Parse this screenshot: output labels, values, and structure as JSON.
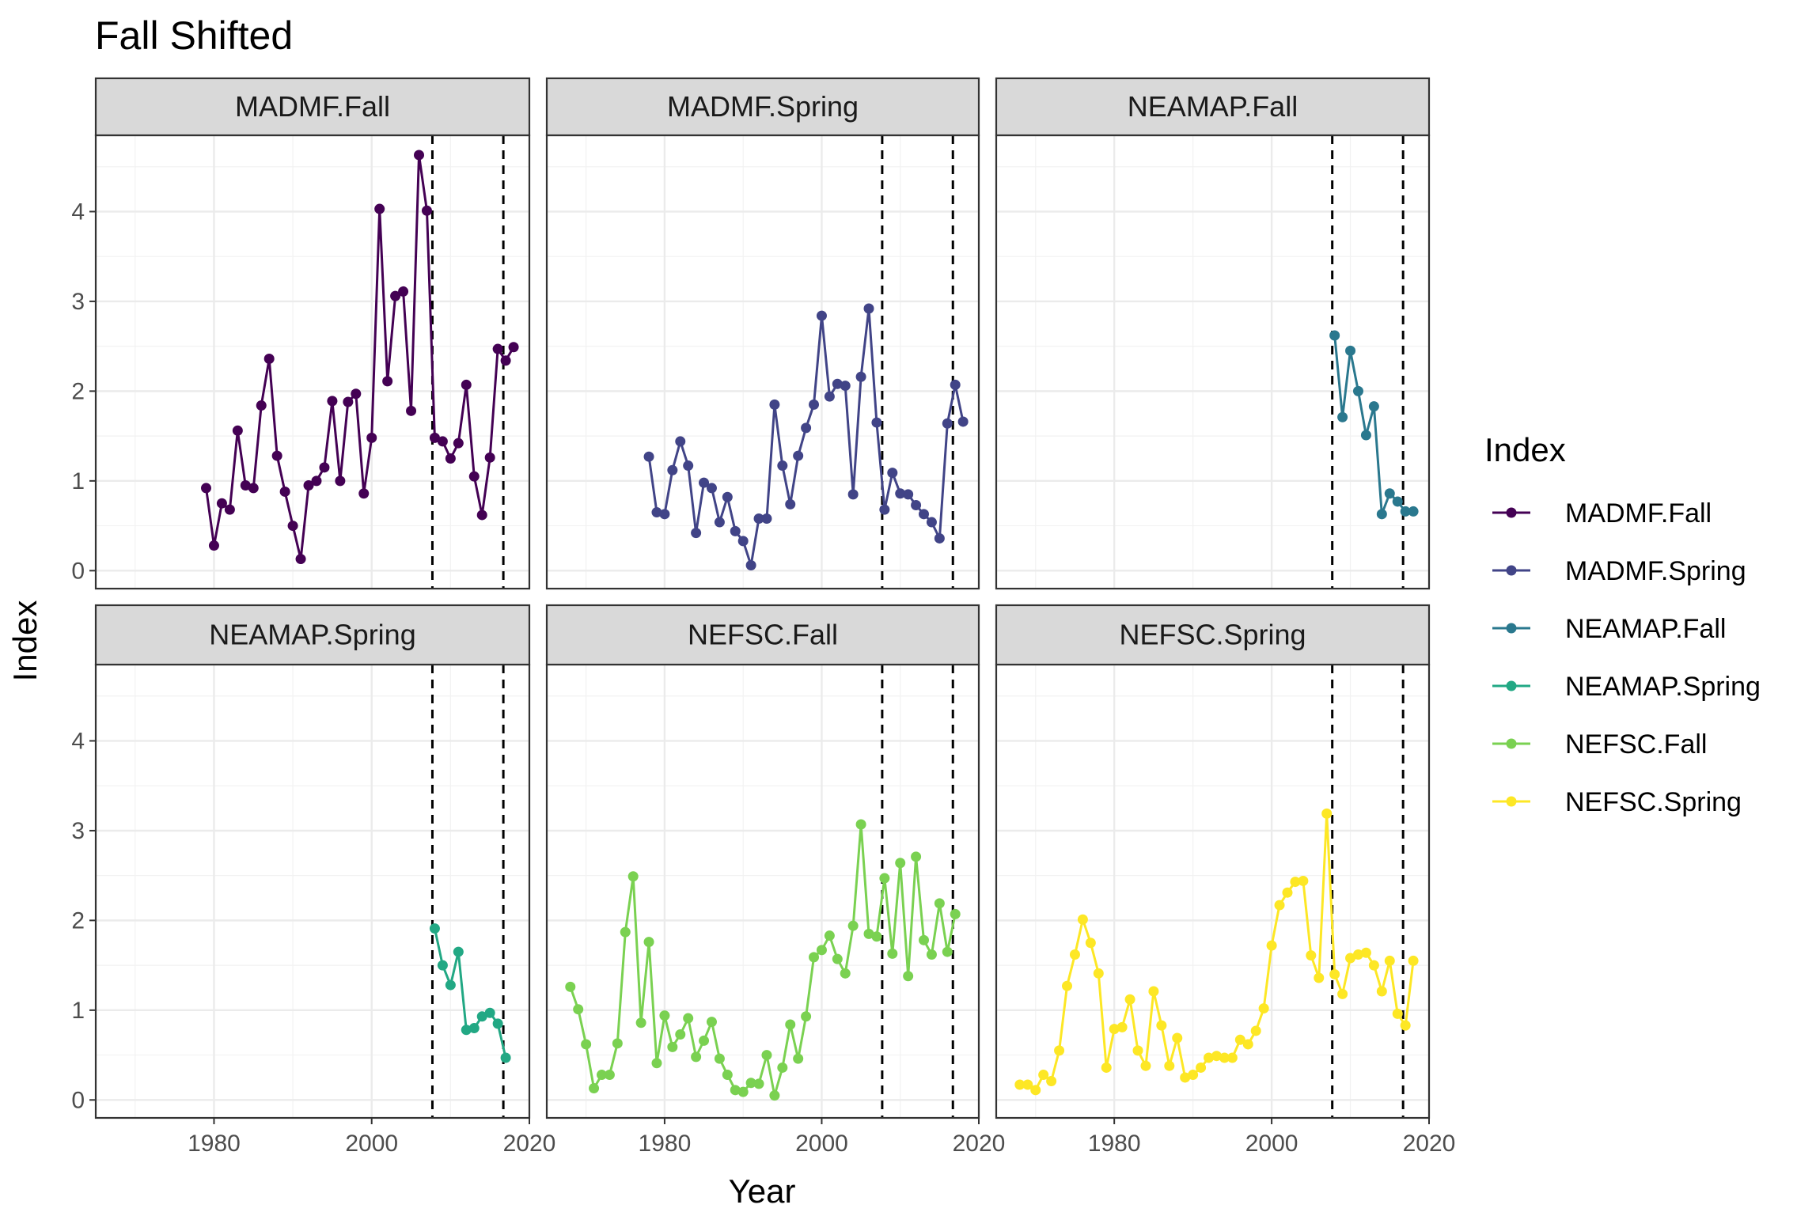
{
  "chart_data": {
    "type": "line",
    "title": "Fall Shifted",
    "xlabel": "Year",
    "ylabel": "Index",
    "xlim": [
      1965,
      2020
    ],
    "ylim": [
      -0.2,
      4.85
    ],
    "x_ticks": [
      1980,
      2000,
      2020
    ],
    "y_ticks": [
      0,
      1,
      2,
      3,
      4
    ],
    "grid": true,
    "legend_title": "Index",
    "legend_position": "right",
    "vlines": [
      2007.7,
      2016.7
    ],
    "panels": [
      {
        "name": "MADMF.Fall",
        "color": "#440154",
        "x": [
          1979,
          1980,
          1981,
          1982,
          1983,
          1984,
          1985,
          1986,
          1987,
          1988,
          1989,
          1990,
          1991,
          1992,
          1993,
          1994,
          1995,
          1996,
          1997,
          1998,
          1999,
          2000,
          2001,
          2002,
          2003,
          2004,
          2005,
          2006,
          2007,
          2008,
          2009,
          2010,
          2011,
          2012,
          2013,
          2014,
          2015,
          2016,
          2017,
          2018
        ],
        "y": [
          0.92,
          0.28,
          0.75,
          0.68,
          1.56,
          0.95,
          0.92,
          1.84,
          2.36,
          1.28,
          0.88,
          0.5,
          0.13,
          0.95,
          1.0,
          1.15,
          1.89,
          1.0,
          1.88,
          1.97,
          0.86,
          1.48,
          4.03,
          2.11,
          3.06,
          3.11,
          1.78,
          4.63,
          4.01,
          1.48,
          1.44,
          1.25,
          1.42,
          2.07,
          1.05,
          0.62,
          1.26,
          2.47,
          2.34,
          2.49
        ]
      },
      {
        "name": "MADMF.Spring",
        "color": "#414487",
        "x": [
          1978,
          1979,
          1980,
          1981,
          1982,
          1983,
          1984,
          1985,
          1986,
          1987,
          1988,
          1989,
          1990,
          1991,
          1992,
          1993,
          1994,
          1995,
          1996,
          1997,
          1998,
          1999,
          2000,
          2001,
          2002,
          2003,
          2004,
          2005,
          2006,
          2007,
          2008,
          2009,
          2010,
          2011,
          2012,
          2013,
          2014,
          2015,
          2016,
          2017,
          2018
        ],
        "y": [
          1.27,
          0.65,
          0.63,
          1.12,
          1.44,
          1.17,
          0.42,
          0.98,
          0.92,
          0.54,
          0.82,
          0.44,
          0.33,
          0.06,
          0.58,
          0.58,
          1.85,
          1.17,
          0.74,
          1.28,
          1.59,
          1.85,
          2.84,
          1.94,
          2.08,
          2.06,
          0.85,
          2.16,
          2.92,
          1.65,
          0.68,
          1.09,
          0.86,
          0.85,
          0.73,
          0.63,
          0.54,
          0.36,
          1.64,
          2.07,
          1.66
        ]
      },
      {
        "name": "NEAMAP.Fall",
        "color": "#2A788E",
        "x": [
          2008,
          2009,
          2010,
          2011,
          2012,
          2013,
          2014,
          2015,
          2016,
          2017,
          2018
        ],
        "y": [
          2.62,
          1.71,
          2.45,
          2.0,
          1.51,
          1.83,
          0.63,
          0.86,
          0.77,
          0.66,
          0.66
        ]
      },
      {
        "name": "NEAMAP.Spring",
        "color": "#22A884",
        "x": [
          2008,
          2009,
          2010,
          2011,
          2012,
          2013,
          2014,
          2015,
          2016,
          2017
        ],
        "y": [
          1.91,
          1.5,
          1.28,
          1.65,
          0.78,
          0.8,
          0.93,
          0.97,
          0.85,
          0.47
        ]
      },
      {
        "name": "NEFSC.Fall",
        "color": "#7AD151",
        "x": [
          1968,
          1969,
          1970,
          1971,
          1972,
          1973,
          1974,
          1975,
          1976,
          1977,
          1978,
          1979,
          1980,
          1981,
          1982,
          1983,
          1984,
          1985,
          1986,
          1987,
          1988,
          1989,
          1990,
          1991,
          1992,
          1993,
          1994,
          1995,
          1996,
          1997,
          1998,
          1999,
          2000,
          2001,
          2002,
          2003,
          2004,
          2005,
          2006,
          2007,
          2008,
          2009,
          2010,
          2011,
          2012,
          2013,
          2014,
          2015,
          2016,
          2017
        ],
        "y": [
          1.26,
          1.01,
          0.62,
          0.13,
          0.28,
          0.28,
          0.63,
          1.87,
          2.49,
          0.86,
          1.76,
          0.41,
          0.94,
          0.59,
          0.73,
          0.91,
          0.48,
          0.66,
          0.87,
          0.46,
          0.28,
          0.11,
          0.09,
          0.19,
          0.18,
          0.5,
          0.05,
          0.36,
          0.84,
          0.46,
          0.93,
          1.59,
          1.67,
          1.83,
          1.57,
          1.41,
          1.94,
          3.07,
          1.85,
          1.82,
          2.47,
          1.63,
          2.64,
          1.38,
          2.71,
          1.78,
          1.62,
          2.19,
          1.65,
          2.07
        ]
      },
      {
        "name": "NEFSC.Spring",
        "color": "#FDE725",
        "x": [
          1968,
          1969,
          1970,
          1971,
          1972,
          1973,
          1974,
          1975,
          1976,
          1977,
          1978,
          1979,
          1980,
          1981,
          1982,
          1983,
          1984,
          1985,
          1986,
          1987,
          1988,
          1989,
          1990,
          1991,
          1992,
          1993,
          1994,
          1995,
          1996,
          1997,
          1998,
          1999,
          2000,
          2001,
          2002,
          2003,
          2004,
          2005,
          2006,
          2007,
          2008,
          2009,
          2010,
          2011,
          2012,
          2013,
          2014,
          2015,
          2016,
          2017,
          2018
        ],
        "y": [
          0.17,
          0.17,
          0.11,
          0.28,
          0.21,
          0.55,
          1.27,
          1.62,
          2.01,
          1.75,
          1.41,
          0.36,
          0.79,
          0.81,
          1.12,
          0.55,
          0.38,
          1.21,
          0.83,
          0.38,
          0.69,
          0.25,
          0.28,
          0.36,
          0.47,
          0.49,
          0.47,
          0.47,
          0.67,
          0.62,
          0.77,
          1.02,
          1.72,
          2.17,
          2.31,
          2.43,
          2.44,
          1.61,
          1.36,
          3.19,
          1.4,
          1.18,
          1.58,
          1.62,
          1.64,
          1.5,
          1.21,
          1.55,
          0.96,
          0.83,
          1.55
        ]
      }
    ]
  }
}
